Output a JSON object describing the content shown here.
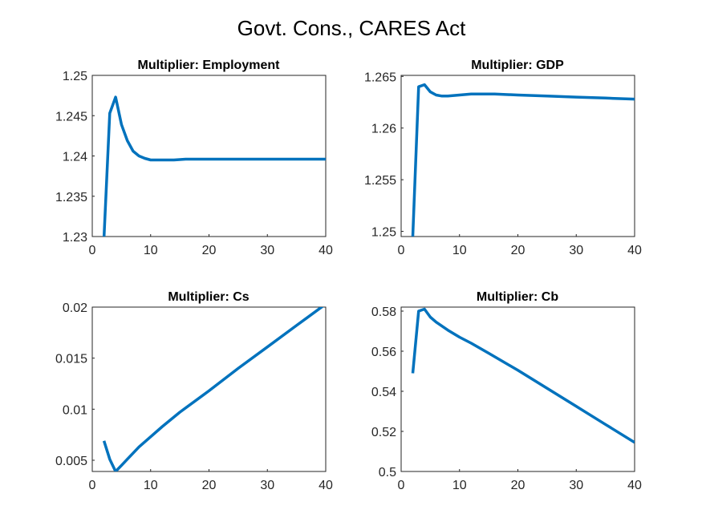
{
  "figure": {
    "title": "Govt. Cons., CARES Act"
  },
  "line_color": "#0072BD",
  "chart_data": [
    {
      "type": "line",
      "title": "Multiplier: Employment",
      "xlim": [
        0,
        40
      ],
      "ylim": [
        1.23,
        1.25
      ],
      "xticks": [
        0,
        10,
        20,
        30,
        40
      ],
      "yticks": [
        1.23,
        1.235,
        1.24,
        1.245,
        1.25
      ],
      "xtick_labels": [
        "0",
        "10",
        "20",
        "30",
        "40"
      ],
      "ytick_labels": [
        "1.23",
        "1.235",
        "1.24",
        "1.245",
        "1.25"
      ],
      "series": [
        {
          "x": [
            2,
            3,
            4,
            5,
            6,
            7,
            8,
            9,
            10,
            11,
            12,
            14,
            16,
            20,
            25,
            30,
            35,
            40
          ],
          "y": [
            1.2298,
            1.2453,
            1.2473,
            1.2439,
            1.2419,
            1.2406,
            1.24,
            1.2397,
            1.2395,
            1.2395,
            1.2395,
            1.2395,
            1.2396,
            1.2396,
            1.2396,
            1.2396,
            1.2396,
            1.2396
          ]
        }
      ]
    },
    {
      "type": "line",
      "title": "Multiplier: GDP",
      "xlim": [
        0,
        40
      ],
      "ylim": [
        1.2495,
        1.2651
      ],
      "xticks": [
        0,
        10,
        20,
        30,
        40
      ],
      "yticks": [
        1.25,
        1.255,
        1.26,
        1.265
      ],
      "xtick_labels": [
        "0",
        "10",
        "20",
        "30",
        "40"
      ],
      "ytick_labels": [
        "1.25",
        "1.255",
        "1.26",
        "1.265"
      ],
      "series": [
        {
          "x": [
            2,
            3,
            4,
            5,
            6,
            7,
            8,
            10,
            12,
            14,
            16,
            20,
            25,
            30,
            35,
            40
          ],
          "y": [
            1.2495,
            1.264,
            1.2642,
            1.2635,
            1.2632,
            1.2631,
            1.2631,
            1.2632,
            1.2633,
            1.2633,
            1.2633,
            1.2632,
            1.2631,
            1.263,
            1.2629,
            1.2628
          ]
        }
      ]
    },
    {
      "type": "line",
      "title": "Multiplier: Cs",
      "xlim": [
        0,
        40
      ],
      "ylim": [
        0.0039,
        0.02
      ],
      "xticks": [
        0,
        10,
        20,
        30,
        40
      ],
      "yticks": [
        0.005,
        0.01,
        0.015,
        0.02
      ],
      "xtick_labels": [
        "0",
        "10",
        "20",
        "30",
        "40"
      ],
      "ytick_labels": [
        "0.005",
        "0.01",
        "0.015",
        "0.02"
      ],
      "series": [
        {
          "x": [
            2,
            3,
            4,
            5,
            6,
            8,
            10,
            12,
            15,
            20,
            25,
            30,
            35,
            40
          ],
          "y": [
            0.0069,
            0.0051,
            0.0039,
            0.0045,
            0.0051,
            0.0063,
            0.0073,
            0.0083,
            0.0097,
            0.0118,
            0.014,
            0.0161,
            0.0182,
            0.0203
          ]
        }
      ]
    },
    {
      "type": "line",
      "title": "Multiplier: Cb",
      "xlim": [
        0,
        40
      ],
      "ylim": [
        0.5,
        0.582
      ],
      "xticks": [
        0,
        10,
        20,
        30,
        40
      ],
      "yticks": [
        0.5,
        0.52,
        0.54,
        0.56,
        0.58
      ],
      "xtick_labels": [
        "0",
        "10",
        "20",
        "30",
        "40"
      ],
      "ytick_labels": [
        "0.5",
        "0.52",
        "0.54",
        "0.56",
        "0.58"
      ],
      "series": [
        {
          "x": [
            2,
            3,
            4,
            5,
            6,
            8,
            10,
            12,
            15,
            20,
            25,
            30,
            35,
            40
          ],
          "y": [
            0.549,
            0.58,
            0.581,
            0.577,
            0.5745,
            0.5705,
            0.567,
            0.564,
            0.559,
            0.5505,
            0.5415,
            0.5325,
            0.5235,
            0.5145
          ]
        }
      ]
    }
  ]
}
